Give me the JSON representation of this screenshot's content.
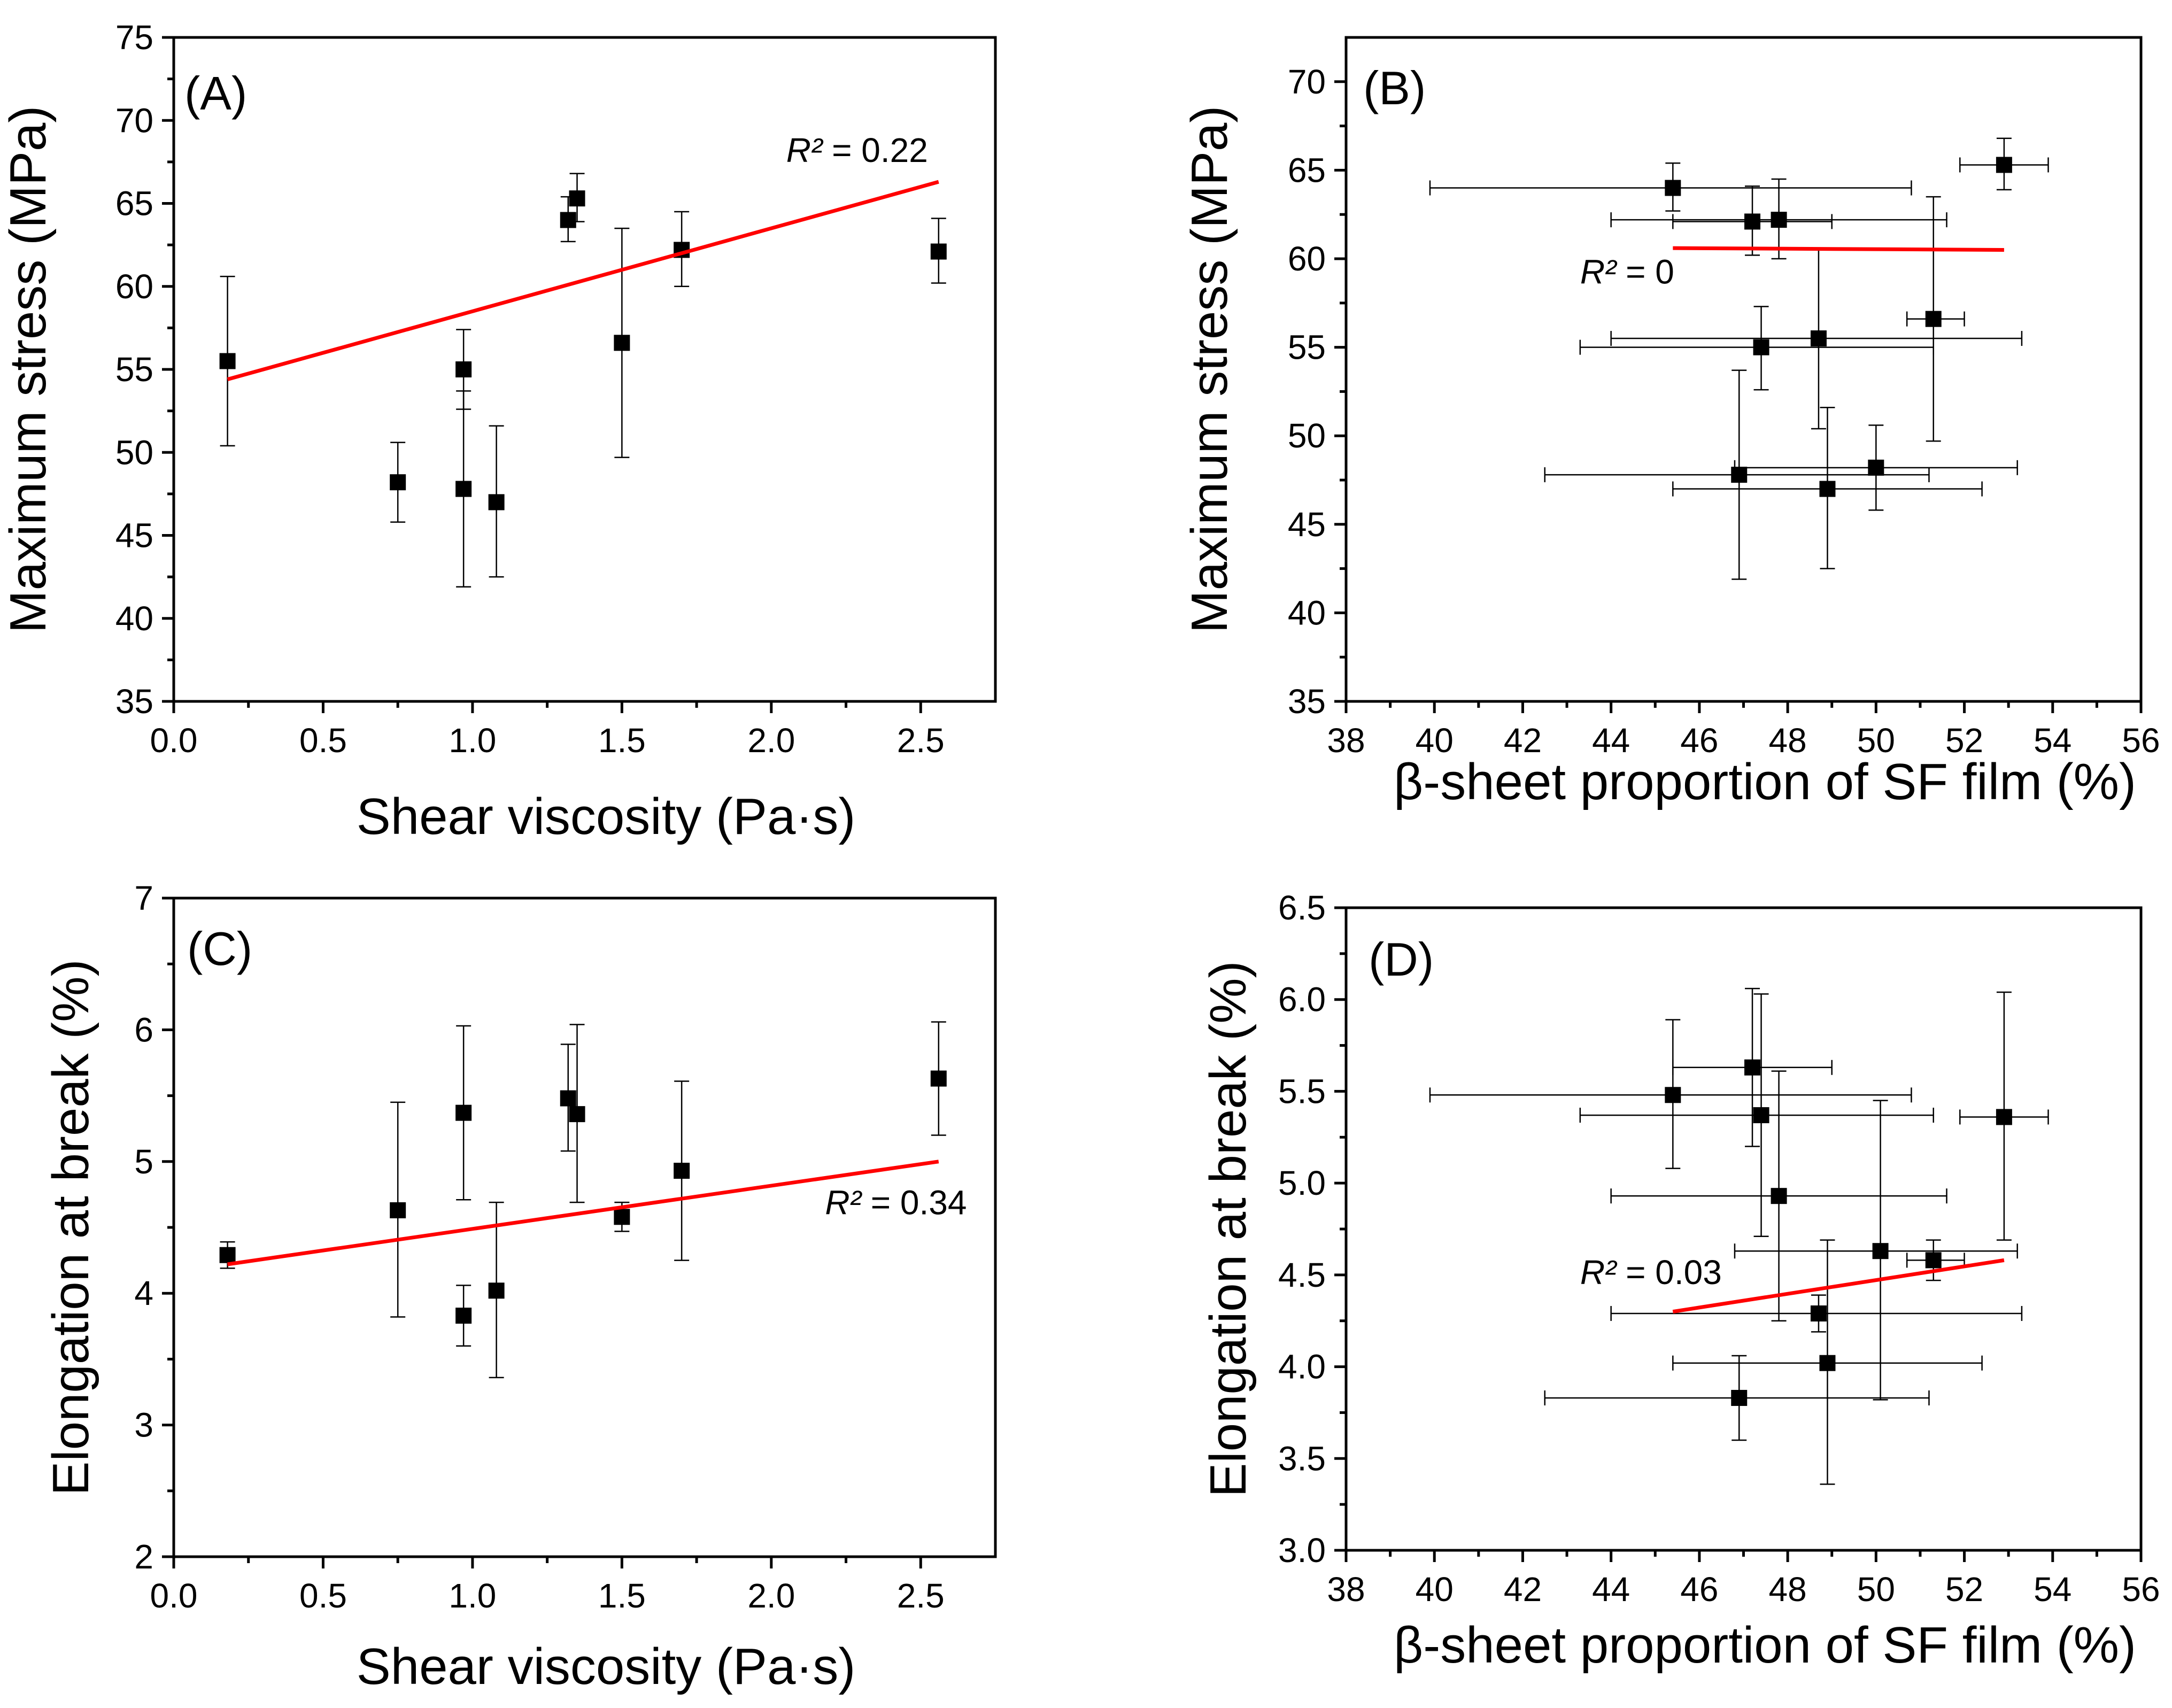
{
  "chart_data": [
    {
      "type": "scatter",
      "label": "(A)",
      "xlabel": "Shear viscosity (Pa·s)",
      "ylabel": "Maximum stress (MPa)",
      "xlim": [
        0.0,
        2.75
      ],
      "ylim": [
        35,
        75
      ],
      "xticks": [
        0.0,
        0.5,
        1.0,
        1.5,
        2.0,
        2.5
      ],
      "xtick_labels": [
        "0.0",
        "0.5",
        "1.0",
        "1.5",
        "2.0",
        "2.5"
      ],
      "yticks": [
        35,
        40,
        45,
        50,
        55,
        60,
        65,
        70,
        75
      ],
      "ytick_labels": [
        "35",
        "40",
        "45",
        "50",
        "55",
        "60",
        "65",
        "70",
        "75"
      ],
      "r2_prefix": "R²",
      "r2_value": " = 0.22",
      "r2_at": [
        2.05,
        67.5
      ],
      "fit": [
        [
          0.18,
          54.4
        ],
        [
          2.56,
          66.3
        ]
      ],
      "points": [
        {
          "x": 0.18,
          "y": 55.5,
          "yerr": [
            50.4,
            60.6
          ]
        },
        {
          "x": 0.75,
          "y": 48.2,
          "yerr": [
            45.8,
            50.6
          ]
        },
        {
          "x": 0.97,
          "y": 55.0,
          "yerr": [
            52.6,
            57.4
          ]
        },
        {
          "x": 0.97,
          "y": 47.8,
          "yerr": [
            41.9,
            53.7
          ]
        },
        {
          "x": 1.08,
          "y": 47.0,
          "yerr": [
            42.5,
            51.6
          ]
        },
        {
          "x": 1.32,
          "y": 64.0,
          "yerr": [
            62.7,
            65.4
          ]
        },
        {
          "x": 1.35,
          "y": 65.3,
          "yerr": [
            63.9,
            66.8
          ]
        },
        {
          "x": 1.5,
          "y": 56.6,
          "yerr": [
            49.7,
            63.5
          ]
        },
        {
          "x": 1.7,
          "y": 62.2,
          "yerr": [
            60.0,
            64.5
          ]
        },
        {
          "x": 2.56,
          "y": 62.1,
          "yerr": [
            60.2,
            64.1
          ]
        }
      ]
    },
    {
      "type": "scatter",
      "label": "(B)",
      "xlabel": "β-sheet proportion of SF film (%)",
      "ylabel": "Maximum stress (MPa)",
      "xlim": [
        38,
        56
      ],
      "ylim": [
        35,
        72.5
      ],
      "xticks": [
        38,
        40,
        42,
        44,
        46,
        48,
        50,
        52,
        54,
        56
      ],
      "xtick_labels": [
        "38",
        "40",
        "42",
        "44",
        "46",
        "48",
        "50",
        "52",
        "54",
        "56"
      ],
      "yticks": [
        35,
        40,
        45,
        50,
        55,
        60,
        65,
        70
      ],
      "ytick_labels": [
        "35",
        "40",
        "45",
        "50",
        "55",
        "60",
        "65",
        "70"
      ],
      "r2_prefix": "R²",
      "r2_value": " = 0",
      "r2_at": [
        43.3,
        58.6
      ],
      "fit": [
        [
          45.4,
          60.6
        ],
        [
          52.9,
          60.5
        ]
      ],
      "points": [
        {
          "x": 45.4,
          "y": 64.0,
          "yerr": [
            62.7,
            65.4
          ],
          "xerr": [
            39.9,
            50.8
          ]
        },
        {
          "x": 47.2,
          "y": 62.1,
          "yerr": [
            60.2,
            64.1
          ],
          "xerr": [
            45.4,
            49.0
          ]
        },
        {
          "x": 47.8,
          "y": 62.2,
          "yerr": [
            60.0,
            64.5
          ],
          "xerr": [
            44.0,
            51.6
          ]
        },
        {
          "x": 52.9,
          "y": 65.3,
          "yerr": [
            63.9,
            66.8
          ],
          "xerr": [
            51.9,
            53.9
          ]
        },
        {
          "x": 51.3,
          "y": 56.6,
          "yerr": [
            49.7,
            63.5
          ],
          "xerr": [
            50.7,
            52.0
          ]
        },
        {
          "x": 47.4,
          "y": 55.0,
          "yerr": [
            52.6,
            57.3
          ],
          "xerr": [
            43.3,
            51.3
          ]
        },
        {
          "x": 48.7,
          "y": 55.5,
          "yerr": [
            50.4,
            60.6
          ],
          "xerr": [
            44.0,
            53.3
          ]
        },
        {
          "x": 46.9,
          "y": 47.8,
          "yerr": [
            41.9,
            53.7
          ],
          "xerr": [
            42.5,
            51.2
          ]
        },
        {
          "x": 50.0,
          "y": 48.2,
          "yerr": [
            45.8,
            50.6
          ],
          "xerr": [
            46.8,
            53.2
          ]
        },
        {
          "x": 48.9,
          "y": 47.0,
          "yerr": [
            42.5,
            51.6
          ],
          "xerr": [
            45.4,
            52.4
          ]
        }
      ]
    },
    {
      "type": "scatter",
      "label": "(C)",
      "xlabel": "Shear viscosity (Pa·s)",
      "ylabel": "Elongation at break (%)",
      "xlim": [
        0.0,
        2.75
      ],
      "ylim": [
        2,
        7
      ],
      "xticks": [
        0.0,
        0.5,
        1.0,
        1.5,
        2.0,
        2.5
      ],
      "xtick_labels": [
        "0.0",
        "0.5",
        "1.0",
        "1.5",
        "2.0",
        "2.5"
      ],
      "yticks": [
        2,
        3,
        4,
        5,
        6,
        7
      ],
      "ytick_labels": [
        "2",
        "3",
        "4",
        "5",
        "6",
        "7"
      ],
      "r2_prefix": "R²",
      "r2_value": " = 0.34",
      "r2_at": [
        2.18,
        4.6
      ],
      "fit": [
        [
          0.18,
          4.22
        ],
        [
          2.56,
          5.0
        ]
      ],
      "points": [
        {
          "x": 0.18,
          "y": 4.29,
          "yerr": [
            4.19,
            4.39
          ]
        },
        {
          "x": 0.75,
          "y": 4.63,
          "yerr": [
            3.82,
            5.45
          ]
        },
        {
          "x": 0.97,
          "y": 5.37,
          "yerr": [
            4.71,
            6.03
          ]
        },
        {
          "x": 0.97,
          "y": 3.83,
          "yerr": [
            3.6,
            4.06
          ]
        },
        {
          "x": 1.08,
          "y": 4.02,
          "yerr": [
            3.36,
            4.69
          ]
        },
        {
          "x": 1.32,
          "y": 5.48,
          "yerr": [
            5.08,
            5.89
          ]
        },
        {
          "x": 1.35,
          "y": 5.36,
          "yerr": [
            4.69,
            6.04
          ]
        },
        {
          "x": 1.5,
          "y": 4.58,
          "yerr": [
            4.47,
            4.69
          ]
        },
        {
          "x": 1.7,
          "y": 4.93,
          "yerr": [
            4.25,
            5.61
          ]
        },
        {
          "x": 2.56,
          "y": 5.63,
          "yerr": [
            5.2,
            6.06
          ]
        }
      ]
    },
    {
      "type": "scatter",
      "label": "(D)",
      "xlabel": "β-sheet proportion of SF film (%)",
      "ylabel": "Elongation at break (%)",
      "xlim": [
        38,
        56
      ],
      "ylim": [
        3.0,
        6.5
      ],
      "xticks": [
        38,
        40,
        42,
        44,
        46,
        48,
        50,
        52,
        54,
        56
      ],
      "xtick_labels": [
        "38",
        "40",
        "42",
        "44",
        "46",
        "48",
        "50",
        "52",
        "54",
        "56"
      ],
      "yticks": [
        3.0,
        3.5,
        4.0,
        4.5,
        5.0,
        5.5,
        6.0,
        6.5
      ],
      "ytick_labels": [
        "3.0",
        "3.5",
        "4.0",
        "4.5",
        "5.0",
        "5.5",
        "6.0",
        "6.5"
      ],
      "r2_prefix": "R²",
      "r2_value": " = 0.03",
      "r2_at": [
        43.3,
        4.45
      ],
      "fit": [
        [
          45.4,
          4.3
        ],
        [
          52.9,
          4.58
        ]
      ],
      "points": [
        {
          "x": 45.4,
          "y": 5.48,
          "yerr": [
            5.08,
            5.89
          ],
          "xerr": [
            39.9,
            50.8
          ]
        },
        {
          "x": 47.2,
          "y": 5.63,
          "yerr": [
            5.2,
            6.06
          ],
          "xerr": [
            45.4,
            49.0
          ]
        },
        {
          "x": 47.4,
          "y": 5.37,
          "yerr": [
            4.71,
            6.03
          ],
          "xerr": [
            43.3,
            51.3
          ]
        },
        {
          "x": 52.9,
          "y": 5.36,
          "yerr": [
            4.69,
            6.04
          ],
          "xerr": [
            51.9,
            53.9
          ]
        },
        {
          "x": 47.8,
          "y": 4.93,
          "yerr": [
            4.25,
            5.61
          ],
          "xerr": [
            44.0,
            51.6
          ]
        },
        {
          "x": 50.1,
          "y": 4.63,
          "yerr": [
            3.82,
            5.45
          ],
          "xerr": [
            46.8,
            53.2
          ]
        },
        {
          "x": 51.3,
          "y": 4.58,
          "yerr": [
            4.47,
            4.69
          ],
          "xerr": [
            50.7,
            52.0
          ]
        },
        {
          "x": 48.7,
          "y": 4.29,
          "yerr": [
            4.19,
            4.39
          ],
          "xerr": [
            44.0,
            53.3
          ]
        },
        {
          "x": 48.9,
          "y": 4.02,
          "yerr": [
            3.36,
            4.69
          ],
          "xerr": [
            45.4,
            52.4
          ]
        },
        {
          "x": 46.9,
          "y": 3.83,
          "yerr": [
            3.6,
            4.06
          ],
          "xerr": [
            42.5,
            51.2
          ]
        }
      ]
    }
  ]
}
